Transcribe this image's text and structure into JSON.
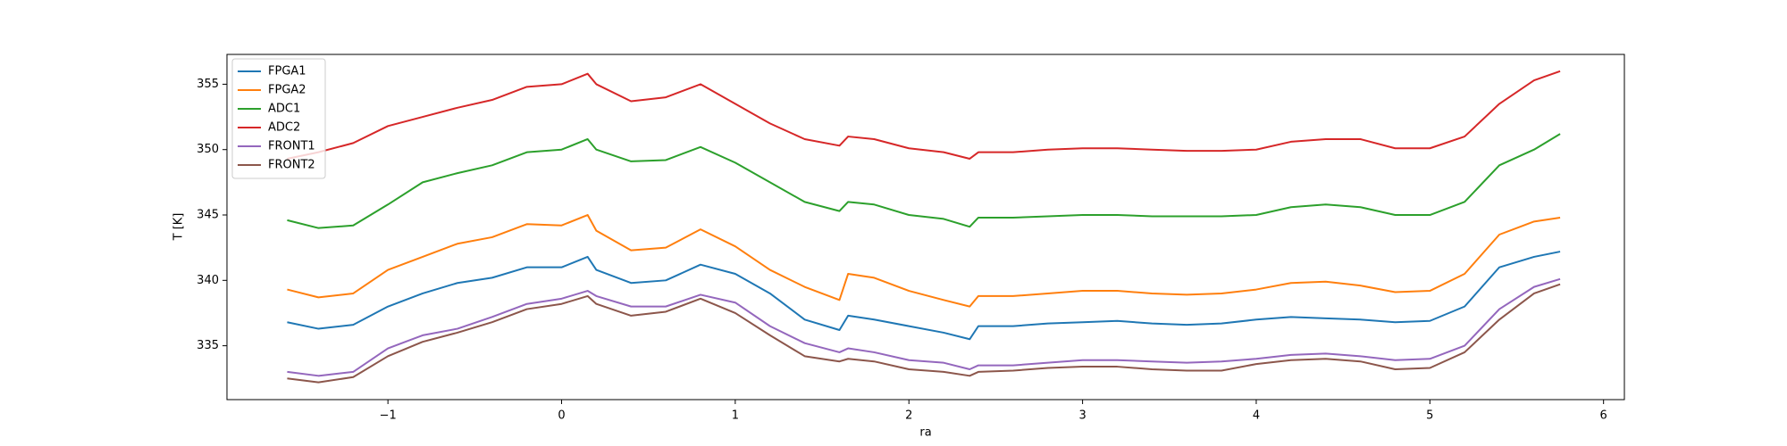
{
  "chart_data": {
    "type": "line",
    "xlabel": "ra",
    "ylabel": "T [K]",
    "x": [
      -1.58,
      -1.4,
      -1.2,
      -1.0,
      -0.8,
      -0.6,
      -0.4,
      -0.2,
      0,
      0.15,
      0.2,
      0.4,
      0.6,
      0.8,
      1.0,
      1.2,
      1.4,
      1.6,
      1.65,
      1.8,
      2.0,
      2.2,
      2.35,
      2.4,
      2.6,
      2.8,
      3.0,
      3.2,
      3.4,
      3.6,
      3.8,
      4.0,
      4.2,
      4.4,
      4.6,
      4.8,
      5.0,
      5.2,
      5.4,
      5.6,
      5.75
    ],
    "series": [
      {
        "name": "FPGA1",
        "color": "#1f77b4",
        "values": [
          336.8,
          336.3,
          336.6,
          338.0,
          339.0,
          339.8,
          340.2,
          341.0,
          341.0,
          341.8,
          340.8,
          339.8,
          340.0,
          341.2,
          340.5,
          339.0,
          337.0,
          336.2,
          337.3,
          337.0,
          336.5,
          336.0,
          335.5,
          336.5,
          336.5,
          336.7,
          336.8,
          336.9,
          336.7,
          336.6,
          336.7,
          337.0,
          337.2,
          337.1,
          337.0,
          336.8,
          336.9,
          338.0,
          341.0,
          341.8,
          342.2
        ]
      },
      {
        "name": "FPGA2",
        "color": "#ff7f0e",
        "values": [
          339.3,
          338.7,
          339.0,
          340.8,
          341.8,
          342.8,
          343.3,
          344.3,
          344.2,
          345.0,
          343.8,
          342.3,
          342.5,
          343.9,
          342.6,
          340.8,
          339.5,
          338.5,
          340.5,
          340.2,
          339.2,
          338.5,
          338.0,
          338.8,
          338.8,
          339.0,
          339.2,
          339.2,
          339.0,
          338.9,
          339.0,
          339.3,
          339.8,
          339.9,
          339.6,
          339.1,
          339.2,
          340.5,
          343.5,
          344.5,
          344.8
        ]
      },
      {
        "name": "ADC1",
        "color": "#2ca02c",
        "values": [
          344.6,
          344.0,
          344.2,
          345.8,
          347.5,
          348.2,
          348.8,
          349.8,
          350.0,
          350.8,
          350.0,
          349.1,
          349.2,
          350.2,
          349.0,
          347.5,
          346.0,
          345.3,
          346.0,
          345.8,
          345.0,
          344.7,
          344.1,
          344.8,
          344.8,
          344.9,
          345.0,
          345.0,
          344.9,
          344.9,
          344.9,
          345.0,
          345.6,
          345.8,
          345.6,
          345.0,
          345.0,
          346.0,
          348.8,
          350.0,
          351.2
        ]
      },
      {
        "name": "ADC2",
        "color": "#d62728",
        "values": [
          349.3,
          349.8,
          350.5,
          351.8,
          352.5,
          353.2,
          353.8,
          354.8,
          355.0,
          355.8,
          355.0,
          353.7,
          354.0,
          355.0,
          353.5,
          352.0,
          350.8,
          350.3,
          351.0,
          350.8,
          350.1,
          349.8,
          349.3,
          349.8,
          349.8,
          350.0,
          350.1,
          350.1,
          350.0,
          349.9,
          349.9,
          350.0,
          350.6,
          350.8,
          350.8,
          350.1,
          350.1,
          351.0,
          353.5,
          355.3,
          356.0
        ]
      },
      {
        "name": "FRONT1",
        "color": "#9467bd",
        "values": [
          333.0,
          332.7,
          333.0,
          334.8,
          335.8,
          336.3,
          337.2,
          338.2,
          338.6,
          339.2,
          338.8,
          338.0,
          338.0,
          338.9,
          338.3,
          336.5,
          335.2,
          334.5,
          334.8,
          334.5,
          333.9,
          333.7,
          333.2,
          333.5,
          333.5,
          333.7,
          333.9,
          333.9,
          333.8,
          333.7,
          333.8,
          334.0,
          334.3,
          334.4,
          334.2,
          333.9,
          334.0,
          335.0,
          337.8,
          339.5,
          340.1
        ]
      },
      {
        "name": "FRONT2",
        "color": "#8c564b",
        "values": [
          332.5,
          332.2,
          332.6,
          334.2,
          335.3,
          336.0,
          336.8,
          337.8,
          338.2,
          338.8,
          338.2,
          337.3,
          337.6,
          338.6,
          337.5,
          335.8,
          334.2,
          333.8,
          334.0,
          333.8,
          333.2,
          333.0,
          332.7,
          333.0,
          333.1,
          333.3,
          333.4,
          333.4,
          333.2,
          333.1,
          333.1,
          333.6,
          333.9,
          334.0,
          333.8,
          333.2,
          333.3,
          334.5,
          337.0,
          339.0,
          339.7
        ]
      }
    ],
    "xlim": [
      -1.927,
      6.12
    ],
    "xticks": [
      {
        "value": -1,
        "label": "−1"
      },
      0,
      1,
      2,
      3,
      4,
      5,
      6
    ],
    "ylim": [
      330.88,
      357.28
    ],
    "yticks": [
      335,
      340,
      345,
      350,
      355
    ],
    "grid": false,
    "legend": "upper left"
  }
}
